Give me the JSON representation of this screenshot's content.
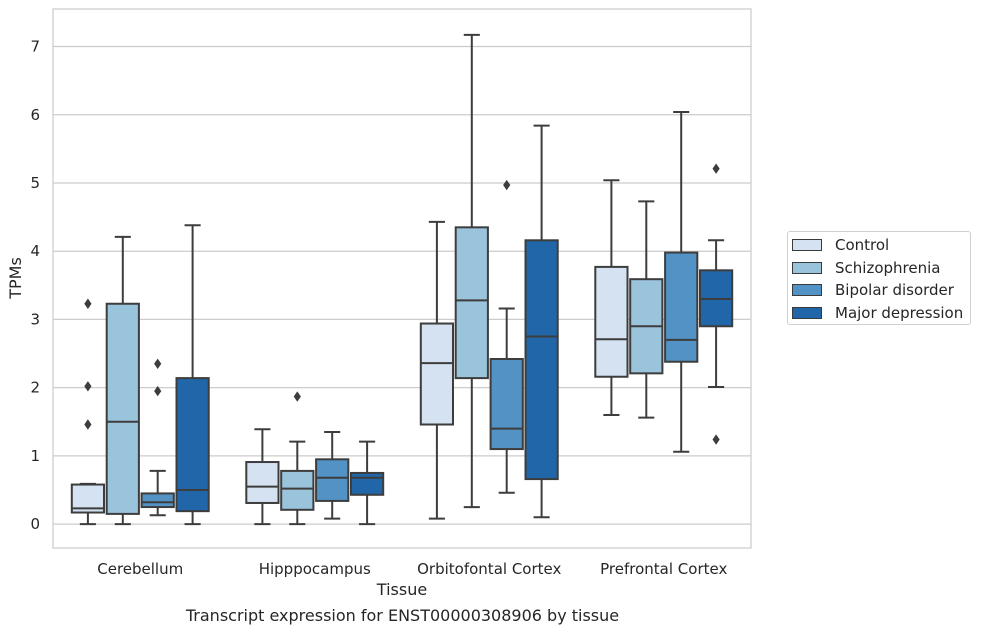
{
  "chart_data": {
    "type": "box",
    "caption": "Transcript expression for ENST00000308906 by tissue",
    "xlabel": "Tissue",
    "ylabel": "TPMs",
    "ylim": [
      -0.35,
      7.55
    ],
    "yticks": [
      "0",
      "1",
      "2",
      "3",
      "4",
      "5",
      "6",
      "7"
    ],
    "grid": "horizontal",
    "legend_position": "right",
    "categories": [
      "Cerebellum",
      "Hipppocampus",
      "Orbitofontal Cortex",
      "Prefrontal Cortex"
    ],
    "series": [
      {
        "name": "Control",
        "color": "#d4e2f2",
        "boxes": [
          {
            "whislo": 0.0,
            "q1": 0.17,
            "med": 0.23,
            "q3": 0.58,
            "whishi": 0.59,
            "fliers": [
              1.46,
              2.02,
              3.23
            ]
          },
          {
            "whislo": 0.0,
            "q1": 0.31,
            "med": 0.55,
            "q3": 0.91,
            "whishi": 1.39,
            "fliers": []
          },
          {
            "whislo": 0.08,
            "q1": 1.46,
            "med": 2.36,
            "q3": 2.94,
            "whishi": 4.43,
            "fliers": []
          },
          {
            "whislo": 1.6,
            "q1": 2.16,
            "med": 2.71,
            "q3": 3.77,
            "whishi": 5.04,
            "fliers": []
          }
        ]
      },
      {
        "name": "Schizophrenia",
        "color": "#9ac3dc",
        "boxes": [
          {
            "whislo": 0.0,
            "q1": 0.15,
            "med": 1.5,
            "q3": 3.23,
            "whishi": 4.21,
            "fliers": []
          },
          {
            "whislo": 0.0,
            "q1": 0.21,
            "med": 0.52,
            "q3": 0.78,
            "whishi": 1.21,
            "fliers": [
              1.87
            ]
          },
          {
            "whislo": 0.25,
            "q1": 2.14,
            "med": 3.28,
            "q3": 4.35,
            "whishi": 7.17,
            "fliers": []
          },
          {
            "whislo": 1.56,
            "q1": 2.21,
            "med": 2.9,
            "q3": 3.59,
            "whishi": 4.73,
            "fliers": []
          }
        ]
      },
      {
        "name": "Bipolar disorder",
        "color": "#5292c4",
        "boxes": [
          {
            "whislo": 0.13,
            "q1": 0.25,
            "med": 0.32,
            "q3": 0.45,
            "whishi": 0.78,
            "fliers": [
              1.95,
              2.35
            ]
          },
          {
            "whislo": 0.08,
            "q1": 0.34,
            "med": 0.68,
            "q3": 0.95,
            "whishi": 1.35,
            "fliers": []
          },
          {
            "whislo": 0.46,
            "q1": 1.1,
            "med": 1.4,
            "q3": 2.42,
            "whishi": 3.16,
            "fliers": [
              4.97
            ]
          },
          {
            "whislo": 1.06,
            "q1": 2.38,
            "med": 2.7,
            "q3": 3.98,
            "whishi": 6.04,
            "fliers": []
          }
        ]
      },
      {
        "name": "Major depression",
        "color": "#2166a8",
        "boxes": [
          {
            "whislo": 0.0,
            "q1": 0.19,
            "med": 0.5,
            "q3": 2.14,
            "whishi": 4.38,
            "fliers": []
          },
          {
            "whislo": 0.0,
            "q1": 0.43,
            "med": 0.68,
            "q3": 0.75,
            "whishi": 1.21,
            "fliers": []
          },
          {
            "whislo": 0.1,
            "q1": 0.66,
            "med": 2.75,
            "q3": 4.16,
            "whishi": 5.84,
            "fliers": []
          },
          {
            "whislo": 2.01,
            "q1": 2.9,
            "med": 3.3,
            "q3": 3.72,
            "whishi": 4.16,
            "fliers": [
              1.24,
              5.21
            ]
          }
        ]
      }
    ]
  }
}
